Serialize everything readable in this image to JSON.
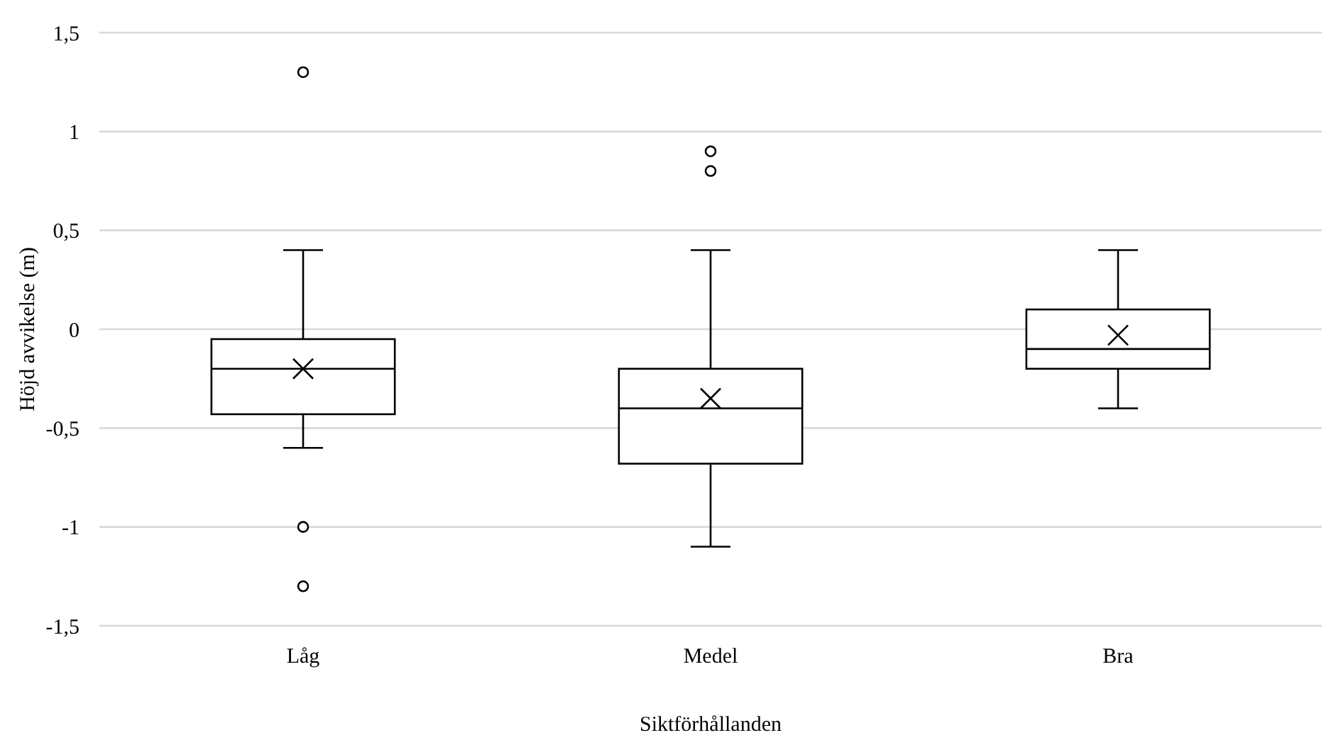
{
  "chart_data": {
    "type": "box",
    "xlabel": "Siktförhållanden",
    "ylabel": "Höjd avvikelse (m)",
    "categories": [
      "Låg",
      "Medel",
      "Bra"
    ],
    "boxes": [
      {
        "low": -0.6,
        "q1": -0.43,
        "median": -0.2,
        "q3": -0.05,
        "high": 0.4,
        "mean": -0.2,
        "outliers": [
          1.3,
          -1,
          -1.3
        ]
      },
      {
        "low": -1.1,
        "q1": -0.68,
        "median": -0.4,
        "q3": -0.2,
        "high": 0.4,
        "mean": -0.35,
        "outliers": [
          0.9,
          0.8
        ]
      },
      {
        "low": -0.4,
        "q1": -0.2,
        "median": -0.1,
        "q3": 0.1,
        "high": 0.4,
        "mean": -0.03
      }
    ],
    "color": "#000000",
    "ylim": [
      -1.5,
      1.5
    ],
    "yticks": [
      {
        "value": -1.5,
        "label": "-1,5"
      },
      {
        "value": -1,
        "label": "-1"
      },
      {
        "value": -0.5,
        "label": "-0,5"
      },
      {
        "value": 0,
        "label": "0"
      },
      {
        "value": 0.5,
        "label": "0,5"
      },
      {
        "value": 1,
        "label": "1"
      },
      {
        "value": 1.5,
        "label": "1,5"
      }
    ],
    "grid": "y"
  }
}
